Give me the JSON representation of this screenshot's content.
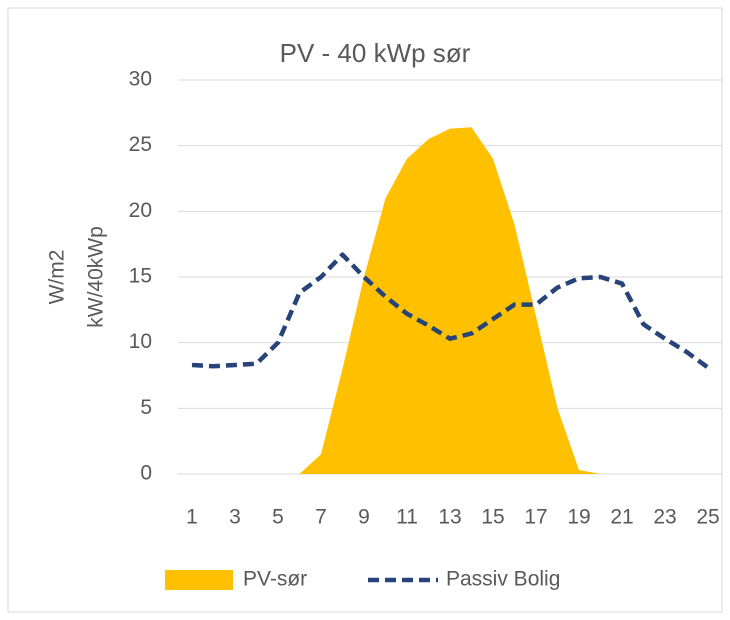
{
  "chart_data": {
    "type": "area-line",
    "title": "PV -  40 kWp sør",
    "ylabel": [
      "W/m2",
      "kW/40kWp"
    ],
    "x": [
      1,
      2,
      3,
      4,
      5,
      6,
      7,
      8,
      9,
      10,
      11,
      12,
      13,
      14,
      15,
      16,
      17,
      18,
      19,
      20,
      21,
      22,
      23,
      24,
      25
    ],
    "xlim": [
      1,
      25
    ],
    "xticks": [
      1,
      3,
      5,
      7,
      9,
      11,
      13,
      15,
      17,
      19,
      21,
      23,
      25
    ],
    "ylim": [
      0,
      30
    ],
    "yticks": [
      0,
      5,
      10,
      15,
      20,
      25,
      30
    ],
    "grid": true,
    "legend": "bottom",
    "series": [
      {
        "name": "PV-sør",
        "kind": "area",
        "color": "#ffc000",
        "values": [
          0,
          0,
          0,
          0,
          0,
          0,
          1.5,
          8,
          15,
          21,
          24,
          25.5,
          26.3,
          26.4,
          24,
          19,
          12,
          5,
          0.3,
          0,
          0,
          0,
          0,
          0,
          0
        ]
      },
      {
        "name": "Passiv Bolig",
        "kind": "dashed-line",
        "color": "#264478",
        "values": [
          8.3,
          8.2,
          8.3,
          8.4,
          10,
          13.8,
          15,
          16.7,
          15,
          13.5,
          12.2,
          11.3,
          10.3,
          10.7,
          11.8,
          12.9,
          12.9,
          14.2,
          14.9,
          15,
          14.5,
          11.4,
          10.3,
          9.3,
          8.1
        ]
      }
    ]
  }
}
